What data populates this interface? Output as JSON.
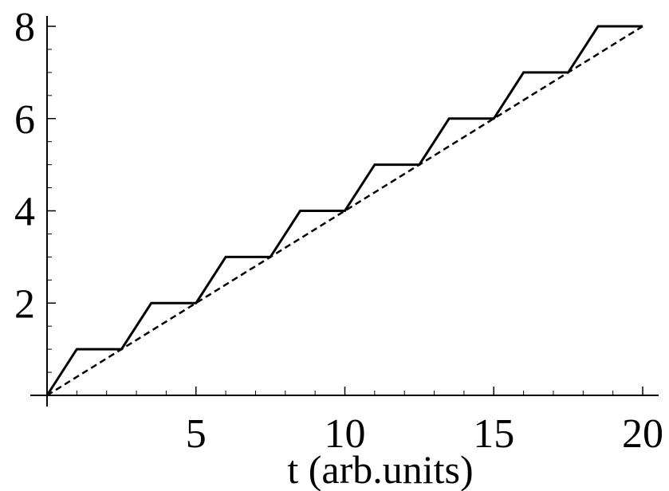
{
  "chart_data": {
    "type": "line",
    "xlabel": "t (arb.units)",
    "ylabel": "",
    "xlim": [
      0,
      20
    ],
    "ylim": [
      0,
      8
    ],
    "x_ticks": [
      5,
      10,
      15,
      20
    ],
    "x_tick_labels": [
      "5",
      "10",
      "15",
      "20"
    ],
    "x_minor_ticks": [
      1,
      2,
      3,
      4,
      6,
      7,
      8,
      9,
      11,
      12,
      13,
      14,
      16,
      17,
      18,
      19
    ],
    "y_ticks": [
      2,
      4,
      6,
      8
    ],
    "y_tick_labels": [
      "2",
      "4",
      "6",
      "8"
    ],
    "y_minor_ticks": [
      0.5,
      1,
      1.5,
      2.5,
      3,
      3.5,
      4.5,
      5,
      5.5,
      6.5,
      7,
      7.5
    ],
    "grid": false,
    "colors": {
      "line": "#000000",
      "axis": "#000000"
    },
    "series": [
      {
        "style": "solid-staircase",
        "x": [
          0,
          1,
          2.5,
          3.5,
          5,
          6,
          7.5,
          8.5,
          10,
          11,
          12.5,
          13.5,
          15,
          16,
          17.5,
          18.5,
          20
        ],
        "y": [
          0,
          1,
          1,
          2,
          2,
          3,
          3,
          4,
          4,
          5,
          5,
          6,
          6,
          7,
          7,
          8,
          8
        ]
      },
      {
        "style": "dashed-linear",
        "x": [
          0,
          20
        ],
        "y": [
          0,
          8
        ]
      }
    ]
  }
}
